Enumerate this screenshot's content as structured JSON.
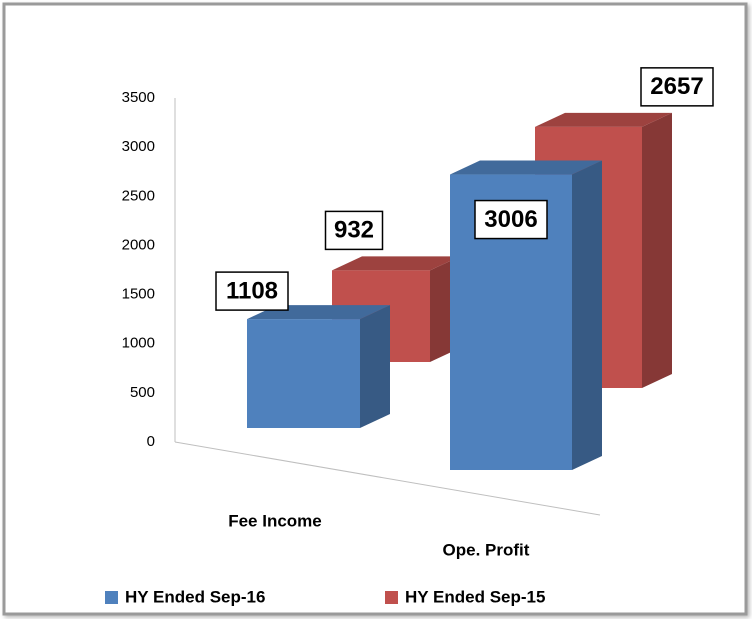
{
  "chart_data": {
    "type": "bar3d",
    "categories": [
      "Fee Income",
      "Ope. Profit"
    ],
    "series": [
      {
        "name": "HY Ended Sep-16",
        "color": "#4f81bd",
        "values": [
          1108,
          3006
        ]
      },
      {
        "name": "HY Ended Sep-15",
        "color": "#c0504d",
        "values": [
          932,
          2657
        ]
      }
    ],
    "ylim": [
      0,
      3500
    ],
    "yticks": [
      0,
      500,
      1000,
      1500,
      2000,
      2500,
      3000,
      3500
    ],
    "grid": false,
    "legend": "bottom"
  }
}
